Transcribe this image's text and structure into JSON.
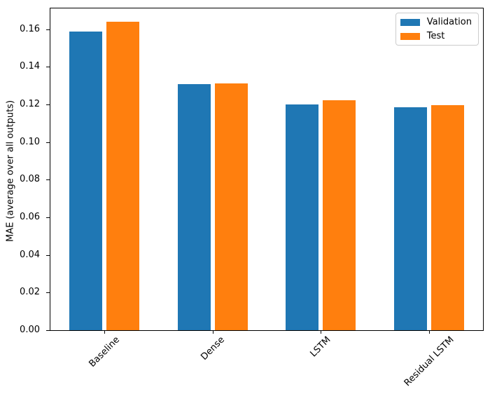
{
  "chart_data": {
    "type": "bar",
    "categories": [
      "Baseline",
      "Dense",
      "LSTM",
      "Residual LSTM"
    ],
    "series": [
      {
        "name": "Validation",
        "color": "#1f77b4",
        "values": [
          0.1588,
          0.1308,
          0.1201,
          0.1184
        ]
      },
      {
        "name": "Test",
        "color": "#ff7f0e",
        "values": [
          0.1638,
          0.131,
          0.1221,
          0.1196
        ]
      }
    ],
    "title": "",
    "xlabel": "",
    "ylabel": "MAE (average over all outputs)",
    "ylim": [
      0,
      0.171
    ],
    "yticks": [
      0.0,
      0.02,
      0.04,
      0.06,
      0.08,
      0.1,
      0.12,
      0.14,
      0.16
    ],
    "ytick_labels": [
      "0.00",
      "0.02",
      "0.04",
      "0.06",
      "0.08",
      "0.10",
      "0.12",
      "0.14",
      "0.16"
    ],
    "xtick_rotation": 45,
    "grid": false,
    "legend_position": "upper right",
    "background_color": "#ffffff",
    "axis_color": "#000000"
  }
}
